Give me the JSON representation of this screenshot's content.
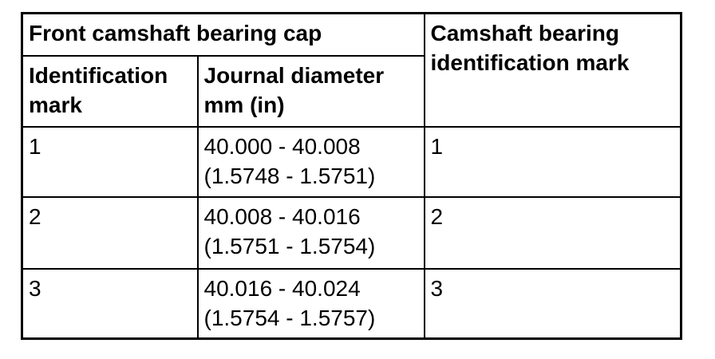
{
  "table": {
    "top_headers": {
      "front_camshaft_bearing_cap": "Front camshaft bearing cap",
      "camshaft_bearing_identification_mark": "Camshaft bearing identification mark"
    },
    "sub_headers": {
      "identification_mark": "Identification mark",
      "journal_diameter": "Journal diameter mm (in)"
    },
    "rows": [
      {
        "id_mark": "1",
        "journal_mm": "40.000 - 40.008",
        "journal_in": "(1.5748 - 1.5751)",
        "bearing_mark": "1"
      },
      {
        "id_mark": "2",
        "journal_mm": "40.008 - 40.016",
        "journal_in": "(1.5751 - 1.5754)",
        "bearing_mark": "2"
      },
      {
        "id_mark": "3",
        "journal_mm": "40.016 - 40.024",
        "journal_in": "(1.5754 - 1.5757)",
        "bearing_mark": "3"
      }
    ],
    "colors": {
      "border": "#000000",
      "text": "#000000",
      "background": "#ffffff"
    }
  }
}
